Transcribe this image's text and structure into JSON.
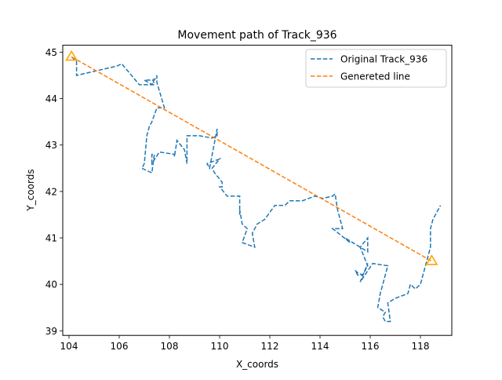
{
  "chart_data": {
    "type": "line",
    "title": "Movement path of Track_936",
    "xlabel": "X_coords",
    "ylabel": "Y_coords",
    "xlim": [
      103.75,
      119.25
    ],
    "ylim": [
      38.9,
      45.15
    ],
    "xticks": [
      104,
      106,
      108,
      110,
      112,
      114,
      116,
      118
    ],
    "yticks": [
      39,
      40,
      41,
      42,
      43,
      44,
      45
    ],
    "xtick_labels": [
      "104",
      "106",
      "108",
      "110",
      "112",
      "114",
      "116",
      "118"
    ],
    "ytick_labels": [
      "39",
      "40",
      "41",
      "42",
      "43",
      "44",
      "45"
    ],
    "grid": false,
    "legend_position": "top-right",
    "series": [
      {
        "name": "Original Track_936",
        "style": "dashed",
        "color": "#1f77b4",
        "x": [
          104.1,
          104.3,
          104.3,
          105.9,
          106.1,
          106.8,
          107.4,
          107.35,
          107.3,
          107.0,
          107.4,
          107.5,
          107.5,
          107.8,
          107.5,
          107.3,
          107.2,
          107.1,
          107.0,
          106.9,
          107.3,
          107.4,
          107.3,
          107.3,
          107.6,
          108.2,
          108.2,
          108.3,
          108.6,
          108.7,
          108.7,
          109.2,
          109.7,
          109.9,
          109.9,
          109.6,
          109.5,
          110.0,
          109.7,
          109.8,
          110.1,
          110.1,
          110.0,
          110.3,
          110.6,
          110.8,
          110.8,
          110.8,
          110.9,
          111.1,
          110.9,
          111.4,
          111.3,
          111.4,
          111.5,
          111.8,
          112.2,
          112.6,
          112.8,
          113.3,
          113.8,
          114.1,
          114.5,
          114.6,
          114.7,
          114.9,
          114.9,
          114.5,
          115.2,
          115.0,
          115.3,
          115.6,
          115.9,
          115.9,
          115.6,
          115.9,
          115.7,
          115.5,
          115.4,
          115.5,
          115.7,
          115.8,
          115.9,
          115.6,
          116.1,
          116.7,
          116.4,
          116.3,
          116.6,
          116.5,
          116.6,
          116.8,
          116.7,
          117.0,
          117.5,
          117.6,
          117.8,
          118.0,
          118.1,
          118.2,
          118.3,
          118.4,
          118.4,
          118.4,
          118.5,
          118.6,
          118.7,
          118.8
        ],
        "y": [
          44.9,
          44.8,
          44.5,
          44.7,
          44.75,
          44.3,
          44.3,
          44.4,
          44.3,
          44.4,
          44.4,
          44.5,
          44.35,
          43.8,
          43.8,
          43.5,
          43.4,
          43.2,
          42.6,
          42.5,
          42.4,
          42.8,
          42.8,
          42.6,
          42.85,
          42.8,
          42.75,
          43.1,
          42.9,
          42.6,
          43.2,
          43.2,
          43.15,
          43.2,
          43.35,
          42.5,
          42.6,
          42.7,
          42.5,
          42.4,
          42.2,
          42.1,
          42.1,
          41.9,
          41.9,
          41.9,
          41.5,
          41.6,
          41.3,
          41.2,
          40.9,
          40.8,
          41.1,
          41.2,
          41.3,
          41.4,
          41.7,
          41.7,
          41.8,
          41.8,
          41.9,
          41.85,
          41.9,
          41.95,
          41.6,
          41.2,
          41.2,
          41.2,
          40.9,
          41.0,
          40.9,
          40.8,
          40.7,
          41.0,
          40.8,
          40.4,
          40.2,
          40.25,
          40.3,
          40.2,
          40.2,
          40.3,
          40.45,
          40.05,
          40.45,
          40.4,
          39.8,
          39.5,
          39.4,
          39.3,
          39.2,
          39.2,
          39.6,
          39.7,
          39.8,
          40.0,
          39.9,
          40.0,
          40.2,
          40.4,
          40.6,
          40.8,
          41.0,
          41.2,
          41.4,
          41.5,
          41.6,
          41.7
        ]
      },
      {
        "name": "Genereted line",
        "style": "dashed",
        "color": "#ff7f0e",
        "x": [
          104.1,
          118.45
        ],
        "y": [
          44.9,
          40.5
        ]
      }
    ],
    "markers": [
      {
        "shape": "triangle",
        "color": "#ffa500",
        "x": 104.1,
        "y": 44.9
      },
      {
        "shape": "triangle",
        "color": "#ffa500",
        "x": 118.45,
        "y": 40.5
      }
    ]
  }
}
